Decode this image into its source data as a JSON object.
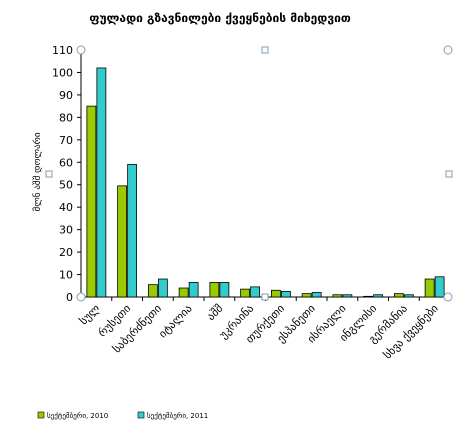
{
  "chart_data": {
    "type": "bar",
    "title": "ფულადი გზავნილები ქვეყნების მიხედვით",
    "ylabel": "მლნ აშშ დოლარი",
    "xlabel": "",
    "ylim": [
      0,
      110
    ],
    "yticks": [
      0,
      10,
      20,
      30,
      40,
      50,
      60,
      70,
      80,
      90,
      100,
      110
    ],
    "grid": false,
    "legend_position": "bottom",
    "categories": [
      "სულ",
      "რუსეთი",
      "საბერძნეთი",
      "იტალია",
      "აშშ",
      "უკრაინა",
      "თურქეთი",
      "ესპანეთი",
      "ისრაელი",
      "ინგლისი",
      "გერმანია",
      "სხვა ქვეყნები"
    ],
    "series": [
      {
        "name": "სექტემბერი, 2010",
        "color": "#99cc00",
        "values": [
          85,
          49.5,
          5.5,
          4,
          6.5,
          3.5,
          3,
          1.5,
          1,
          0.3,
          1.5,
          8
        ]
      },
      {
        "name": "სექტემბერი, 2011",
        "color": "#33cccc",
        "values": [
          102,
          59,
          8,
          6.5,
          6.5,
          4.5,
          2.5,
          2,
          1,
          1,
          1,
          9
        ]
      }
    ]
  }
}
